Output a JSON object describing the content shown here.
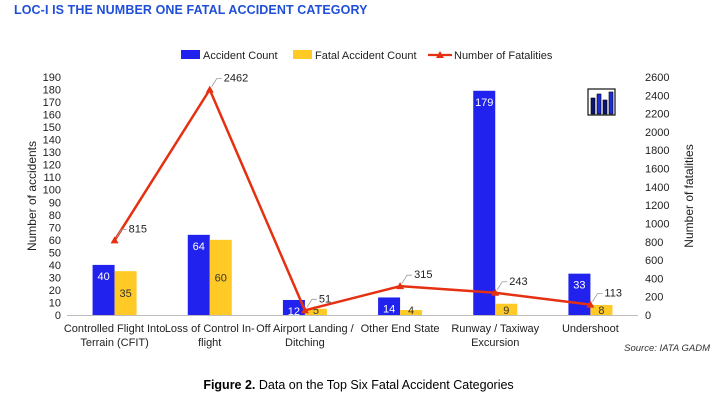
{
  "headline": "LOC-I IS THE NUMBER ONE FATAL ACCIDENT CATEGORY",
  "caption": {
    "prefix": "Figure 2.",
    "text": "Data on the Top Six Fatal Accident Categories"
  },
  "source": "Source: IATA GADM",
  "colors": {
    "accident": "#2222ee",
    "fatal": "#ffc926",
    "fatalities": "#e53012"
  },
  "icon": "bar-chart-icon",
  "chart_data": {
    "type": "bar",
    "categories": [
      [
        "Controlled Flight Into",
        "Terrain (CFIT)"
      ],
      [
        "Loss of Control In-",
        "flight"
      ],
      [
        "Off Airport Landing /",
        "Ditching"
      ],
      [
        "Other End State",
        ""
      ],
      [
        "Runway / Taxiway",
        "Excursion"
      ],
      [
        "Undershoot",
        ""
      ]
    ],
    "series": [
      {
        "name": "Accident Count",
        "kind": "bar",
        "axis": "left",
        "values": [
          40,
          64,
          12,
          14,
          179,
          33
        ]
      },
      {
        "name": "Fatal Accident Count",
        "kind": "bar",
        "axis": "left",
        "values": [
          35,
          60,
          5,
          4,
          9,
          8
        ]
      },
      {
        "name": "Number of Fatalities",
        "kind": "line",
        "axis": "right",
        "values": [
          815,
          2462,
          51,
          315,
          243,
          113
        ]
      }
    ],
    "ylabel": "Number of accidents",
    "y2label": "Number of fatalities",
    "ylim": [
      0,
      190
    ],
    "y2lim": [
      0,
      2600
    ],
    "yticks": [
      0,
      10,
      20,
      30,
      40,
      50,
      60,
      70,
      80,
      90,
      100,
      110,
      120,
      130,
      140,
      150,
      160,
      170,
      180,
      190
    ],
    "y2ticks": [
      0,
      200,
      400,
      600,
      800,
      1000,
      1200,
      1400,
      1600,
      1800,
      2000,
      2200,
      2400,
      2600
    ],
    "legend_position": "top-center",
    "grid": false
  }
}
